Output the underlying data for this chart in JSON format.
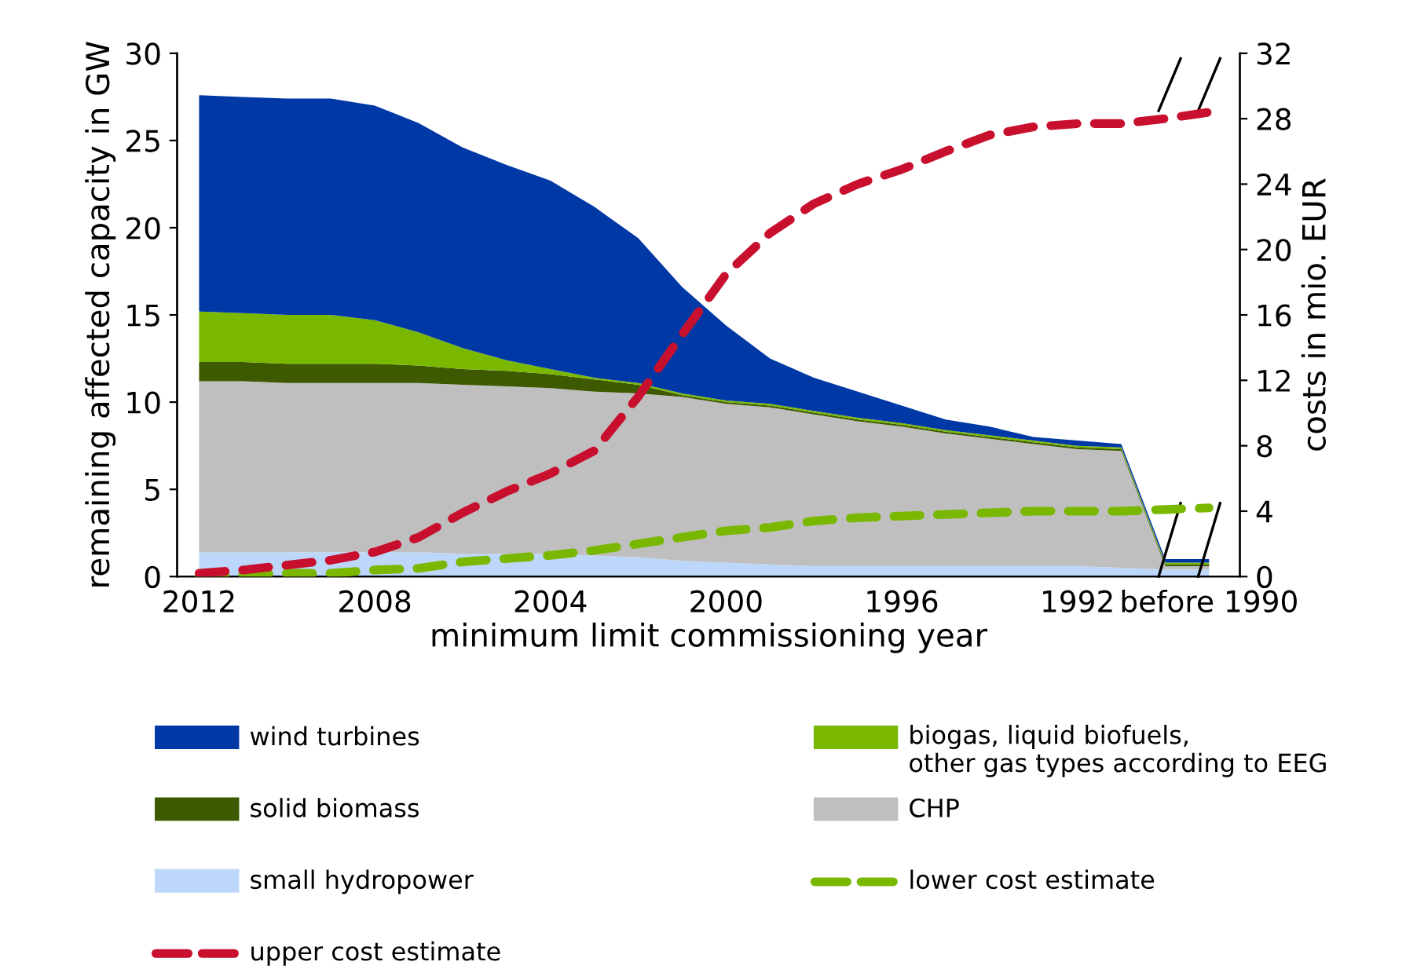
{
  "chart_data": {
    "type": "area",
    "stacked": true,
    "xlabel": "minimum limit commissioning year",
    "ylabel": "remaining affected capacity in GW",
    "y2label": "costs in mio. EUR",
    "categories": [
      "2012",
      null,
      null,
      null,
      "2008",
      null,
      null,
      null,
      "2004",
      null,
      null,
      null,
      "2000",
      null,
      null,
      null,
      "1996",
      null,
      null,
      null,
      "1992",
      null,
      null,
      "before 1990"
    ],
    "ylim": [
      0,
      30
    ],
    "yticks": [
      0,
      5,
      10,
      15,
      20,
      25,
      30
    ],
    "y2lim": [
      0,
      32
    ],
    "y2ticks": [
      0,
      4,
      8,
      12,
      16,
      20,
      24,
      28,
      32
    ],
    "grid": false,
    "legend": "bottom",
    "series": [
      {
        "name": "small hydropower",
        "color": "#bdd7fb",
        "values": [
          1.4,
          1.4,
          1.4,
          1.4,
          1.4,
          1.4,
          1.3,
          1.3,
          1.3,
          1.2,
          1.1,
          0.9,
          0.8,
          0.7,
          0.6,
          0.6,
          0.6,
          0.6,
          0.6,
          0.6,
          0.6,
          0.5,
          0.4,
          0.4
        ]
      },
      {
        "name": "CHP",
        "color": "#bfbfbf",
        "values": [
          9.8,
          9.8,
          9.7,
          9.7,
          9.7,
          9.7,
          9.7,
          9.6,
          9.5,
          9.4,
          9.4,
          9.4,
          9.1,
          9.0,
          8.7,
          8.3,
          8.0,
          7.6,
          7.3,
          7.0,
          6.7,
          6.7,
          0.2,
          0.2
        ]
      },
      {
        "name": "solid biomass",
        "color": "#3d5a00",
        "values": [
          1.1,
          1.1,
          1.1,
          1.1,
          1.1,
          1.0,
          0.9,
          0.9,
          0.8,
          0.7,
          0.5,
          0.1,
          0.1,
          0.1,
          0.1,
          0.1,
          0.1,
          0.1,
          0.1,
          0.1,
          0.1,
          0.1,
          0.1,
          0.1
        ]
      },
      {
        "name": "biogas, liquid biofuels,\nother gas types according to EEG",
        "color": "#7ab800",
        "values": [
          2.9,
          2.8,
          2.8,
          2.8,
          2.5,
          1.9,
          1.2,
          0.6,
          0.3,
          0.1,
          0.1,
          0.1,
          0.1,
          0.1,
          0.1,
          0.1,
          0.1,
          0.1,
          0.1,
          0.1,
          0.1,
          0.1,
          0.1,
          0.1
        ]
      },
      {
        "name": "wind turbines",
        "color": "#0039a6",
        "values": [
          12.4,
          12.4,
          12.4,
          12.4,
          12.3,
          12.0,
          11.5,
          11.2,
          10.8,
          9.8,
          8.3,
          6.1,
          4.3,
          2.6,
          1.9,
          1.5,
          1.0,
          0.6,
          0.5,
          0.2,
          0.3,
          0.2,
          0.2,
          0.2
        ]
      },
      {
        "name": "lower cost estimate",
        "type": "line",
        "axis": "y2",
        "line_style": "dashed",
        "color": "#7ab800",
        "values": [
          0.0,
          0.1,
          0.2,
          0.2,
          0.4,
          0.5,
          0.9,
          1.1,
          1.3,
          1.6,
          2.0,
          2.4,
          2.8,
          3.0,
          3.4,
          3.6,
          3.7,
          3.8,
          3.9,
          4.0,
          4.0,
          4.0,
          4.1,
          4.2
        ]
      },
      {
        "name": "upper cost estimate",
        "type": "line",
        "axis": "y2",
        "line_style": "dashed",
        "color": "#c8102e",
        "values": [
          0.2,
          0.4,
          0.7,
          1.0,
          1.5,
          2.4,
          3.9,
          5.2,
          6.3,
          7.7,
          11.0,
          14.8,
          18.5,
          21.0,
          22.8,
          24.0,
          24.9,
          26.0,
          27.0,
          27.5,
          27.7,
          27.7,
          28.0,
          28.4
        ]
      }
    ]
  }
}
